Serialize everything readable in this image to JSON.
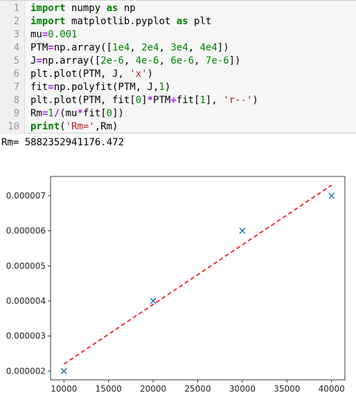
{
  "code_lines": [
    {
      "n": "1",
      "tokens": [
        [
          "kw",
          "import"
        ],
        [
          "",
          " numpy "
        ],
        [
          "kw",
          "as"
        ],
        [
          "",
          " np"
        ]
      ]
    },
    {
      "n": "2",
      "tokens": [
        [
          "kw",
          "import"
        ],
        [
          "",
          " matplotlib.pyplot "
        ],
        [
          "kw",
          "as"
        ],
        [
          "",
          " plt"
        ]
      ]
    },
    {
      "n": "3",
      "tokens": [
        [
          "",
          "mu"
        ],
        [
          "op",
          "="
        ],
        [
          "num",
          "0.001"
        ]
      ]
    },
    {
      "n": "4",
      "tokens": [
        [
          "",
          "PTM"
        ],
        [
          "op",
          "="
        ],
        [
          "",
          "np.array(["
        ],
        [
          "num",
          "1e4"
        ],
        [
          "",
          ", "
        ],
        [
          "num",
          "2e4"
        ],
        [
          "",
          ", "
        ],
        [
          "num",
          "3e4"
        ],
        [
          "",
          ", "
        ],
        [
          "num",
          "4e4"
        ],
        [
          "",
          "])"
        ]
      ]
    },
    {
      "n": "5",
      "tokens": [
        [
          "",
          "J"
        ],
        [
          "op",
          "="
        ],
        [
          "",
          "np.array(["
        ],
        [
          "num",
          "2e-6"
        ],
        [
          "",
          ", "
        ],
        [
          "num",
          "4e-6"
        ],
        [
          "",
          ", "
        ],
        [
          "num",
          "6e-6"
        ],
        [
          "",
          ", "
        ],
        [
          "num",
          "7e-6"
        ],
        [
          "",
          "])"
        ]
      ]
    },
    {
      "n": "6",
      "tokens": [
        [
          "",
          "plt.plot(PTM, J, "
        ],
        [
          "str",
          "'x'"
        ],
        [
          "",
          ")"
        ]
      ]
    },
    {
      "n": "7",
      "tokens": [
        [
          "",
          "fit"
        ],
        [
          "op",
          "="
        ],
        [
          "",
          "np.polyfit(PTM, J,"
        ],
        [
          "num",
          "1"
        ],
        [
          "",
          ")"
        ]
      ]
    },
    {
      "n": "8",
      "tokens": [
        [
          "",
          "plt.plot(PTM, fit["
        ],
        [
          "num",
          "0"
        ],
        [
          "",
          "]"
        ],
        [
          "op",
          "*"
        ],
        [
          "",
          "PTM"
        ],
        [
          "op",
          "+"
        ],
        [
          "",
          "fit["
        ],
        [
          "num",
          "1"
        ],
        [
          "",
          "], "
        ],
        [
          "str",
          "'r--'"
        ],
        [
          "",
          ")"
        ]
      ]
    },
    {
      "n": "9",
      "tokens": [
        [
          "",
          "Rm"
        ],
        [
          "op",
          "="
        ],
        [
          "num",
          "1"
        ],
        [
          "op",
          "/"
        ],
        [
          "",
          "(mu"
        ],
        [
          "op",
          "*"
        ],
        [
          "",
          "fit["
        ],
        [
          "num",
          "0"
        ],
        [
          "",
          "])"
        ]
      ]
    },
    {
      "n": "10",
      "tokens": [
        [
          "kw",
          "print"
        ],
        [
          "",
          "("
        ],
        [
          "str",
          "'Rm='"
        ],
        [
          "",
          ",Rm)"
        ]
      ]
    }
  ],
  "output_text": "Rm= 5882352941176.472",
  "chart_data": {
    "type": "scatter",
    "x": [
      10000,
      20000,
      30000,
      40000
    ],
    "y": [
      2e-06,
      4e-06,
      6e-06,
      7e-06
    ],
    "fit_line": {
      "x": [
        10000,
        40000
      ],
      "y": [
        2.2e-06,
        7.3e-06
      ],
      "style": "r--",
      "color": "#ff2b2b"
    },
    "marker_color": "#1f77b4",
    "xticks": [
      10000,
      15000,
      20000,
      25000,
      30000,
      35000,
      40000
    ],
    "yticks": [
      2e-06,
      3e-06,
      4e-06,
      5e-06,
      6e-06,
      7e-06
    ],
    "xtick_labels": [
      "10000",
      "15000",
      "20000",
      "25000",
      "30000",
      "35000",
      "40000"
    ],
    "ytick_labels": [
      "0.000002",
      "0.000003",
      "0.000004",
      "0.000005",
      "0.000006",
      "0.000007"
    ],
    "xlim": [
      8500,
      41500
    ],
    "ylim": [
      1.75e-06,
      7.55e-06
    ]
  }
}
